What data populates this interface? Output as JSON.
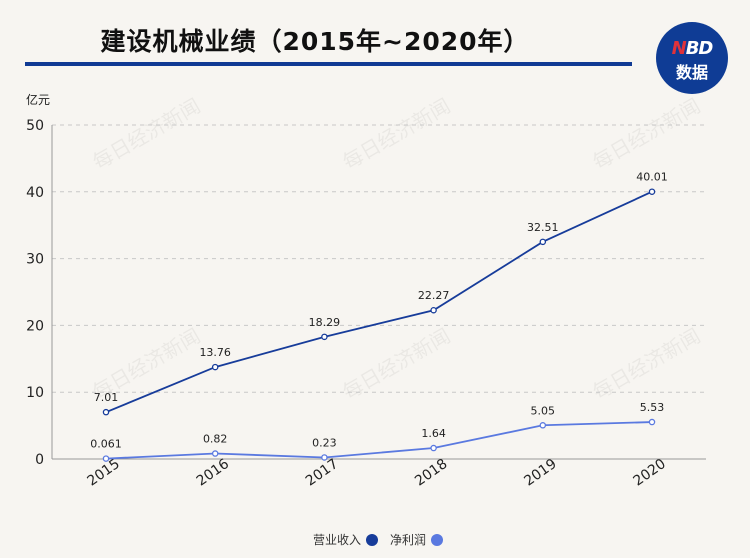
{
  "title": "建设机械业绩（2015年~2020年）",
  "logo": {
    "top": "NBD",
    "bottom": "数据"
  },
  "watermark": "每日经济新闻",
  "chart_data": {
    "type": "line",
    "ylabel": "亿元",
    "ylim": [
      0,
      50
    ],
    "yticks": [
      0,
      10,
      20,
      30,
      40,
      50
    ],
    "categories": [
      "2015",
      "2016",
      "2017",
      "2018",
      "2019",
      "2020"
    ],
    "series": [
      {
        "name": "营业收入",
        "color": "#173c9a",
        "values": [
          7.01,
          13.76,
          18.29,
          22.27,
          32.51,
          40.01
        ],
        "labels": [
          "7.01",
          "13.76",
          "18.29",
          "22.27",
          "32.51",
          "40.01"
        ]
      },
      {
        "name": "净利润",
        "color": "#5a79e0",
        "values": [
          0.061,
          0.82,
          0.23,
          1.64,
          5.05,
          5.53
        ],
        "labels": [
          "0.061",
          "0.82",
          "0.23",
          "1.64",
          "5.05",
          "5.53"
        ]
      }
    ],
    "grid": true,
    "legend_position": "bottom"
  }
}
